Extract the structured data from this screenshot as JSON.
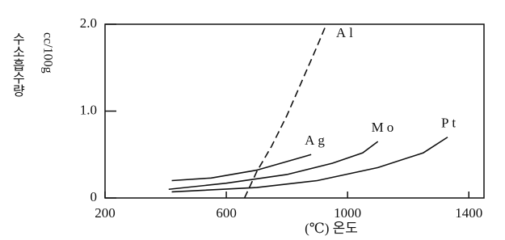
{
  "chart_data": {
    "type": "line",
    "ylabel": "수소흡수량",
    "yunit": "cc/100g",
    "xlabel": "(℃) 온도",
    "xlim": [
      200,
      1450
    ],
    "xticks": [
      200,
      600,
      1000,
      1400
    ],
    "ylim": [
      0,
      2.0
    ],
    "yticks": [
      0,
      {
        "value": 1,
        "label": "1.0"
      },
      {
        "value": 2,
        "label": "2.0"
      }
    ],
    "series": [
      {
        "name": "Al",
        "color": "#111",
        "dashed": true,
        "x": [
          660,
          700,
          750,
          800,
          850,
          900,
          930
        ],
        "values": [
          0,
          0.3,
          0.6,
          0.95,
          1.35,
          1.75,
          2.0
        ]
      },
      {
        "name": "Ag",
        "color": "#111",
        "dashed": false,
        "x": [
          420,
          550,
          700,
          880
        ],
        "values": [
          0.2,
          0.23,
          0.32,
          0.5
        ]
      },
      {
        "name": "Mo",
        "color": "#111",
        "dashed": false,
        "x": [
          410,
          600,
          800,
          950,
          1050,
          1100
        ],
        "values": [
          0.1,
          0.17,
          0.27,
          0.4,
          0.52,
          0.65
        ]
      },
      {
        "name": "Pt",
        "color": "#111",
        "dashed": false,
        "x": [
          420,
          700,
          900,
          1100,
          1250,
          1330
        ],
        "values": [
          0.07,
          0.12,
          0.2,
          0.35,
          0.52,
          0.7
        ]
      }
    ]
  }
}
